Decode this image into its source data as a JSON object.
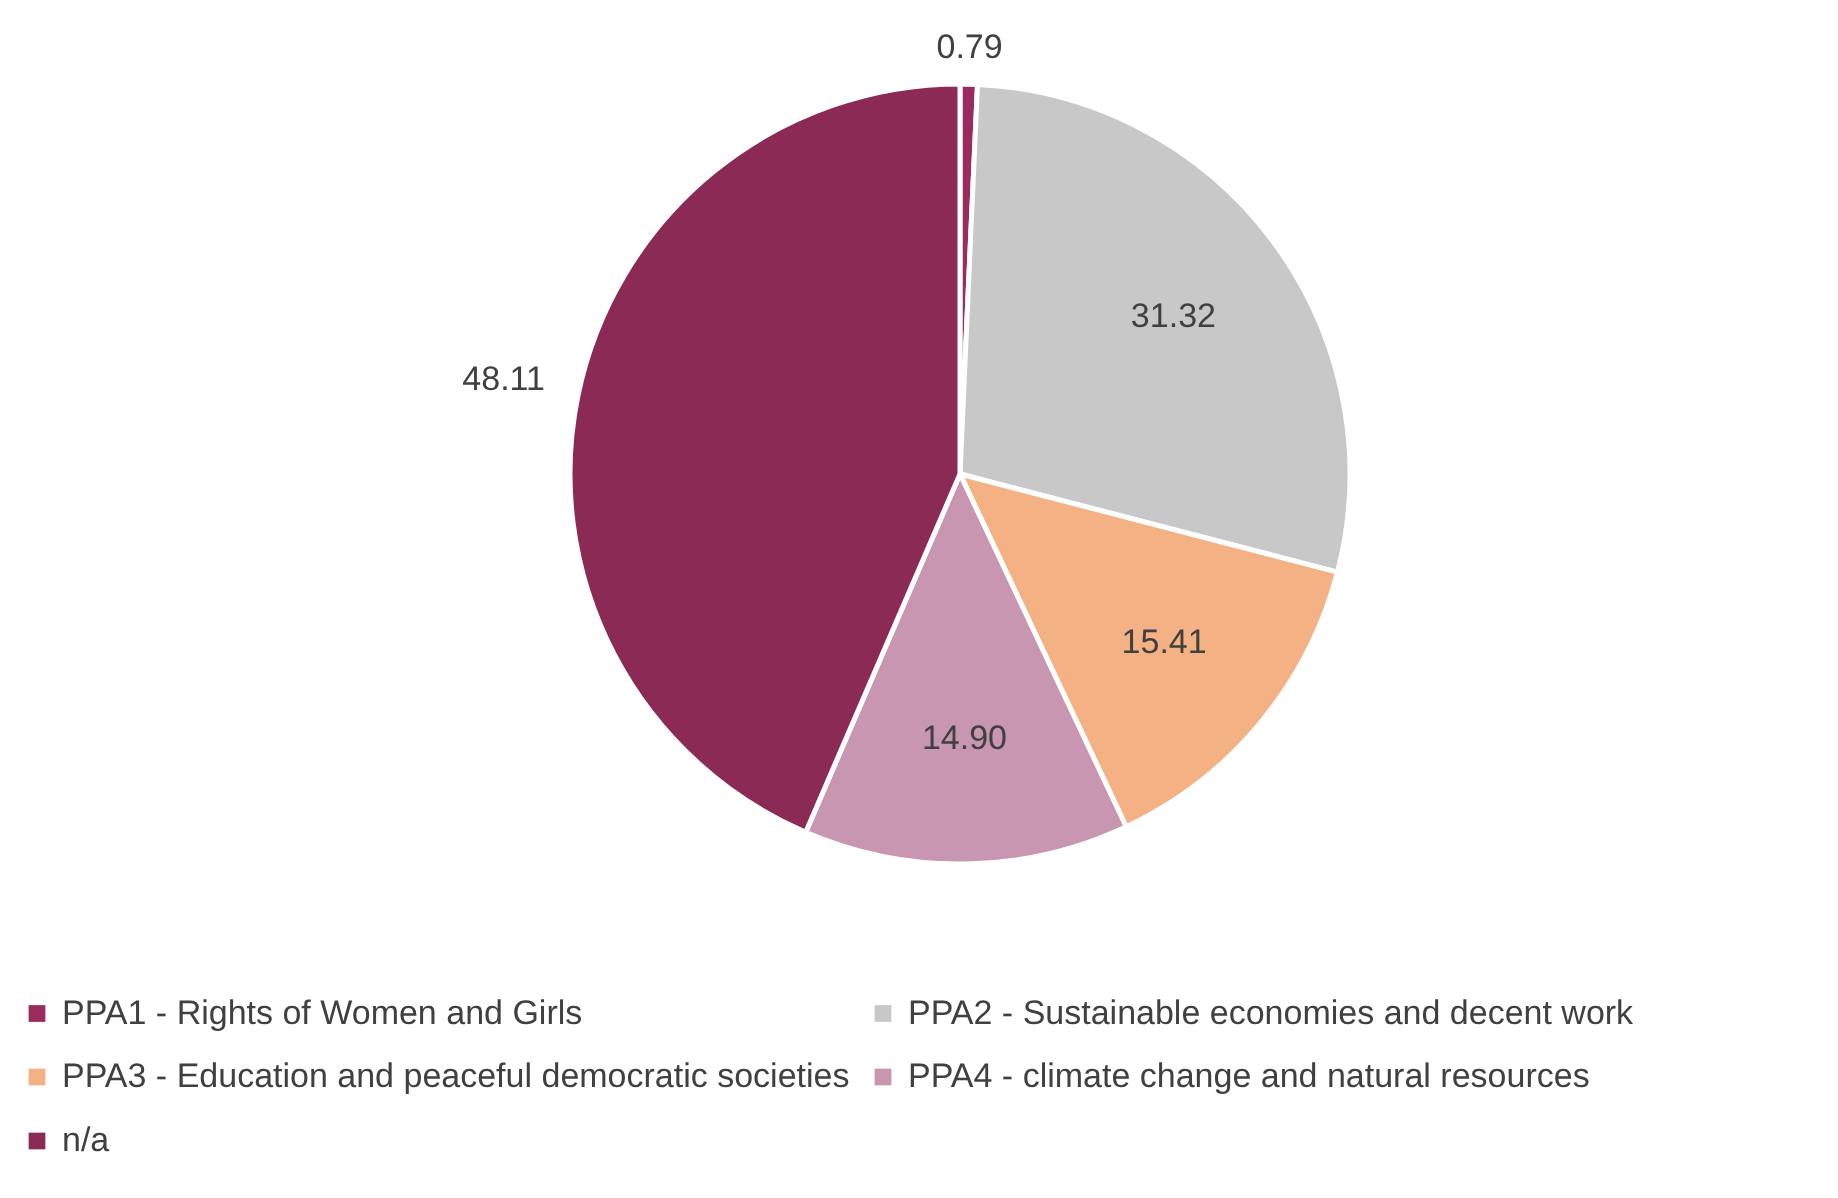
{
  "chart_data": {
    "type": "pie",
    "categories": [
      "PPA1 - Rights of Women and Girls",
      "PPA2 - Sustainable economies and decent work",
      "PPA3 - Education and peaceful democratic societies",
      "PPA4 - climate change and natural resources",
      "n/a"
    ],
    "values": [
      0.79,
      31.32,
      15.41,
      14.9,
      48.11
    ],
    "value_labels": [
      "0.79",
      "31.32",
      "15.41",
      "14.90",
      "48.11"
    ],
    "colors": [
      "#9b2a5e",
      "#c8c8c8",
      "#f4b183",
      "#c896b0",
      "#8b2a55"
    ],
    "legend": "bottom"
  }
}
